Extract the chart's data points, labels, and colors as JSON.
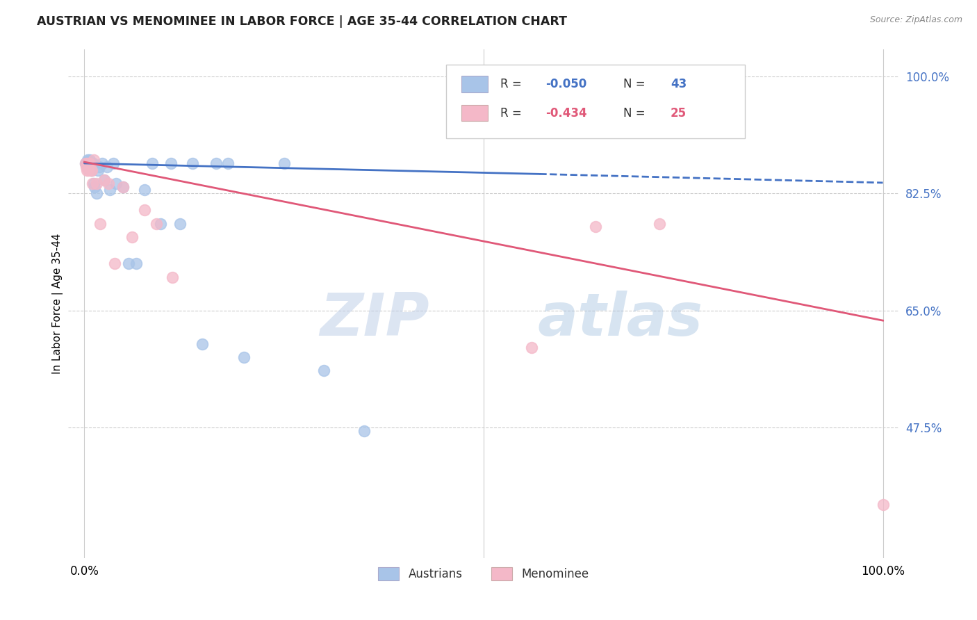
{
  "title": "AUSTRIAN VS MENOMINEE IN LABOR FORCE | AGE 35-44 CORRELATION CHART",
  "source": "Source: ZipAtlas.com",
  "ylabel": "In Labor Force | Age 35-44",
  "xlim": [
    0.0,
    1.0
  ],
  "ylim": [
    0.28,
    1.04
  ],
  "ytick_labels": [
    "100.0%",
    "82.5%",
    "65.0%",
    "47.5%"
  ],
  "ytick_values": [
    1.0,
    0.825,
    0.65,
    0.475
  ],
  "austrians_color": "#a8c4e8",
  "menominee_color": "#f4b8c8",
  "trendline_austrians_color": "#4472c4",
  "trendline_menominee_color": "#e05878",
  "watermark_zip": "ZIP",
  "watermark_atlas": "atlas",
  "austrians_x": [
    0.001,
    0.002,
    0.003,
    0.003,
    0.004,
    0.004,
    0.005,
    0.005,
    0.006,
    0.006,
    0.007,
    0.007,
    0.008,
    0.009,
    0.01,
    0.011,
    0.012,
    0.013,
    0.015,
    0.017,
    0.019,
    0.022,
    0.025,
    0.028,
    0.032,
    0.036,
    0.04,
    0.048,
    0.055,
    0.065,
    0.075,
    0.085,
    0.095,
    0.108,
    0.12,
    0.135,
    0.148,
    0.165,
    0.18,
    0.2,
    0.25,
    0.3,
    0.35
  ],
  "austrians_y": [
    0.87,
    0.87,
    0.872,
    0.868,
    0.87,
    0.875,
    0.87,
    0.87,
    0.87,
    0.862,
    0.87,
    0.875,
    0.86,
    0.86,
    0.87,
    0.87,
    0.84,
    0.835,
    0.825,
    0.86,
    0.865,
    0.87,
    0.845,
    0.865,
    0.83,
    0.87,
    0.84,
    0.835,
    0.72,
    0.72,
    0.83,
    0.87,
    0.78,
    0.87,
    0.78,
    0.87,
    0.6,
    0.87,
    0.87,
    0.58,
    0.87,
    0.56,
    0.47
  ],
  "menominee_x": [
    0.001,
    0.002,
    0.003,
    0.004,
    0.005,
    0.006,
    0.007,
    0.008,
    0.009,
    0.01,
    0.012,
    0.015,
    0.02,
    0.025,
    0.03,
    0.038,
    0.048,
    0.06,
    0.075,
    0.09,
    0.11,
    0.56,
    0.64,
    0.72,
    1.0
  ],
  "menominee_y": [
    0.87,
    0.865,
    0.86,
    0.87,
    0.86,
    0.87,
    0.87,
    0.86,
    0.86,
    0.84,
    0.875,
    0.84,
    0.78,
    0.845,
    0.84,
    0.72,
    0.835,
    0.76,
    0.8,
    0.78,
    0.7,
    0.595,
    0.775,
    0.78,
    0.36
  ],
  "trendline_a_x0": 0.0,
  "trendline_a_y0": 0.87,
  "trendline_a_x1_solid": 0.57,
  "trendline_a_y1_solid": 0.854,
  "trendline_a_x1_dash": 1.0,
  "trendline_a_y1_dash": 0.841,
  "trendline_m_x0": 0.0,
  "trendline_m_y0": 0.872,
  "trendline_m_x1": 1.0,
  "trendline_m_y1": 0.635
}
